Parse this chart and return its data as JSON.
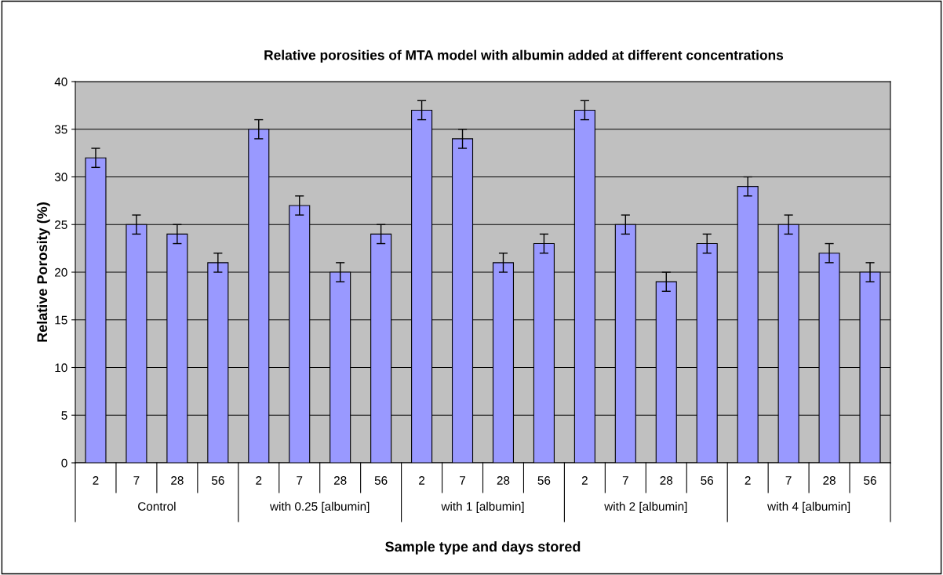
{
  "chart_data": {
    "type": "bar",
    "title": "Relative porosities of MTA model with albumin added at different concentrations",
    "xlabel": "Sample type and days stored",
    "ylabel": "Relative Porosity (%)",
    "categories": [
      "2",
      "7",
      "28",
      "56",
      "2",
      "7",
      "28",
      "56",
      "2",
      "7",
      "28",
      "56",
      "2",
      "7",
      "28",
      "56",
      "2",
      "7",
      "28",
      "56"
    ],
    "values": [
      32,
      25,
      24,
      21,
      35,
      27,
      20,
      24,
      37,
      34,
      21,
      23,
      37,
      25,
      19,
      23,
      29,
      25,
      22,
      20
    ],
    "errors": [
      1,
      1,
      1,
      1,
      1,
      1,
      1,
      1,
      1,
      1,
      1,
      1,
      1,
      1,
      1,
      1,
      1,
      1,
      1,
      1
    ],
    "color": "#9999ff",
    "annotations": [
      "Control",
      "with 0.25 [albumin]",
      "with 1 [albumin]",
      "with 2 [albumin]",
      "with 4 [albumin]"
    ],
    "ylim": [
      0,
      40
    ],
    "yticks": [
      0,
      5,
      10,
      15,
      20,
      25,
      30,
      35,
      40
    ],
    "grid": "y",
    "legend": false
  }
}
